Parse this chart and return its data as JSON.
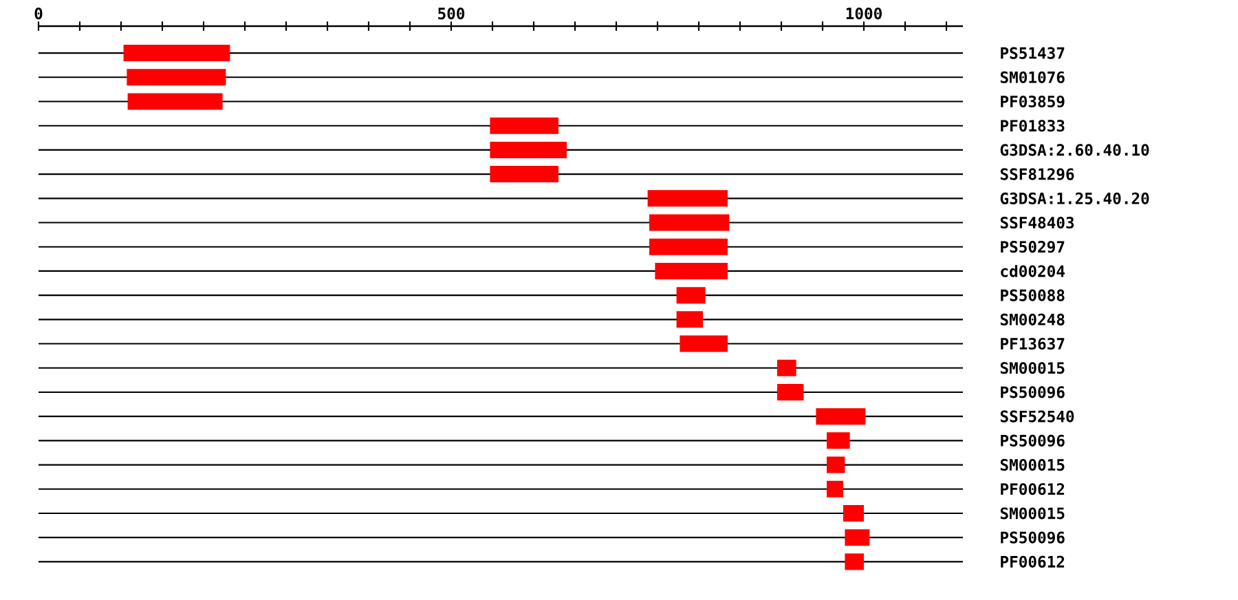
{
  "chart_data": {
    "type": "bar",
    "orientation": "horizontal",
    "color": "#ff0000",
    "grid": "y",
    "categories": [
      "PS51437",
      "SM01076",
      "PF03859",
      "PF01833",
      "G3DSA:2.60.40.10",
      "SSF81296",
      "G3DSA:1.25.40.20",
      "SSF48403",
      "PS50297",
      "cd00204",
      "PS50088",
      "SM00248",
      "PF13637",
      "SM00015",
      "PS50096",
      "SSF52540",
      "PS50096",
      "SM00015",
      "PF00612",
      "SM00015",
      "PS50096",
      "PF00612"
    ],
    "base": [
      103,
      107,
      108,
      547,
      547,
      547,
      738,
      740,
      740,
      747,
      773,
      773,
      777,
      895,
      895,
      942,
      955,
      955,
      955,
      975,
      977,
      977
    ],
    "values": [
      129,
      120,
      115,
      83,
      93,
      83,
      97,
      97,
      95,
      88,
      35,
      32,
      58,
      23,
      32,
      60,
      28,
      22,
      20,
      25,
      30,
      23
    ],
    "xlim": [
      0,
      1120
    ],
    "xticks": [
      0,
      {
        "value": 50,
        "label": null
      },
      {
        "value": 100,
        "label": null
      },
      {
        "value": 150,
        "label": null
      },
      {
        "value": 200,
        "label": null
      },
      {
        "value": 250,
        "label": null
      },
      {
        "value": 300,
        "label": null
      },
      {
        "value": 350,
        "label": null
      },
      {
        "value": 400,
        "label": null
      },
      {
        "value": 450,
        "label": null
      },
      500,
      {
        "value": 550,
        "label": null
      },
      {
        "value": 600,
        "label": null
      },
      {
        "value": 650,
        "label": null
      },
      {
        "value": 700,
        "label": null
      },
      {
        "value": 750,
        "label": null
      },
      {
        "value": 800,
        "label": null
      },
      {
        "value": 850,
        "label": null
      },
      {
        "value": 900,
        "label": null
      },
      {
        "value": 950,
        "label": null
      },
      1000,
      {
        "value": 1050,
        "label": null
      },
      {
        "value": 1100,
        "label": null
      }
    ]
  }
}
